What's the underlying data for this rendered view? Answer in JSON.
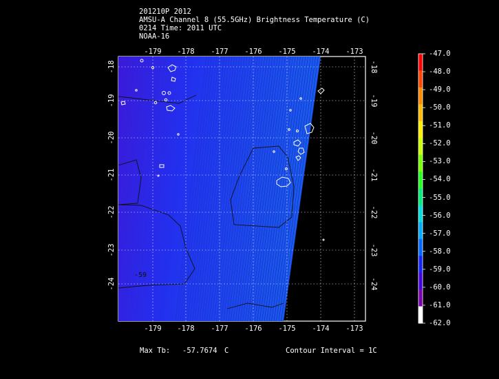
{
  "header": {
    "line1": "201210P 2012",
    "line2": "AMSU-A Channel 8 (55.5GHz) Brightness Temperature (C)",
    "line3": "0214 Time: 2011 UTC",
    "line4": "NOAA-16"
  },
  "axes": {
    "lon_ticks": [
      "-179",
      "-178",
      "-177",
      "-176",
      "-175",
      "-174",
      "-173"
    ],
    "lat_ticks": [
      "-18",
      "-19",
      "-20",
      "-21",
      "-22",
      "-23",
      "-24"
    ]
  },
  "colorbar": {
    "labels": [
      "-47.0",
      "-48.0",
      "-49.0",
      "-50.0",
      "-51.0",
      "-52.0",
      "-53.0",
      "-54.0",
      "-55.0",
      "-56.0",
      "-57.0",
      "-58.0",
      "-59.0",
      "-60.0",
      "-61.0",
      "-62.0"
    ],
    "colors": [
      "#ff0000",
      "#ff4400",
      "#ff8800",
      "#ffbb00",
      "#ffee00",
      "#ccff00",
      "#77ff00",
      "#22ff22",
      "#00ee77",
      "#00dddd",
      "#00aaff",
      "#0066ff",
      "#1122ff",
      "#4400dd",
      "#7700aa",
      "#ffffff"
    ]
  },
  "contour_label": "-59",
  "footer": {
    "max_tb_label": "Max Tb:",
    "max_tb_value": "-57.7674",
    "max_tb_unit": "C",
    "contour_interval": "Contour Interval = 1C"
  },
  "colors": {
    "swath_left": "#2f1fe0",
    "swath_right": "#1a55f0",
    "background": "#000000",
    "frame": "#ffffff"
  }
}
